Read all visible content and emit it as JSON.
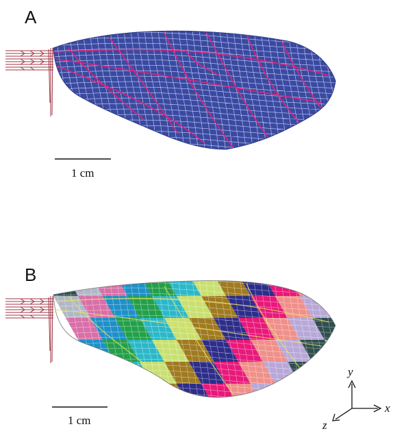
{
  "panels": [
    {
      "label": "A",
      "scale_bar": "1 cm"
    },
    {
      "label": "B",
      "scale_bar": "1 cm"
    }
  ],
  "axes": {
    "x": "x",
    "y": "y",
    "z": "z"
  },
  "colors": {
    "wing_fill_a": "#3a4aa0",
    "mesh_line": "#c8d0ff",
    "vein_line": "#e0247a",
    "root_lines": "#a03040",
    "segment_palette": [
      "#2f4f4f",
      "#b0b8c8",
      "#d96fa8",
      "#1e90c8",
      "#23a04a",
      "#2bb8c8",
      "#c8e070",
      "#a07a20",
      "#2d2d8a",
      "#e8197a",
      "#f0908a",
      "#b8a8d8"
    ]
  }
}
